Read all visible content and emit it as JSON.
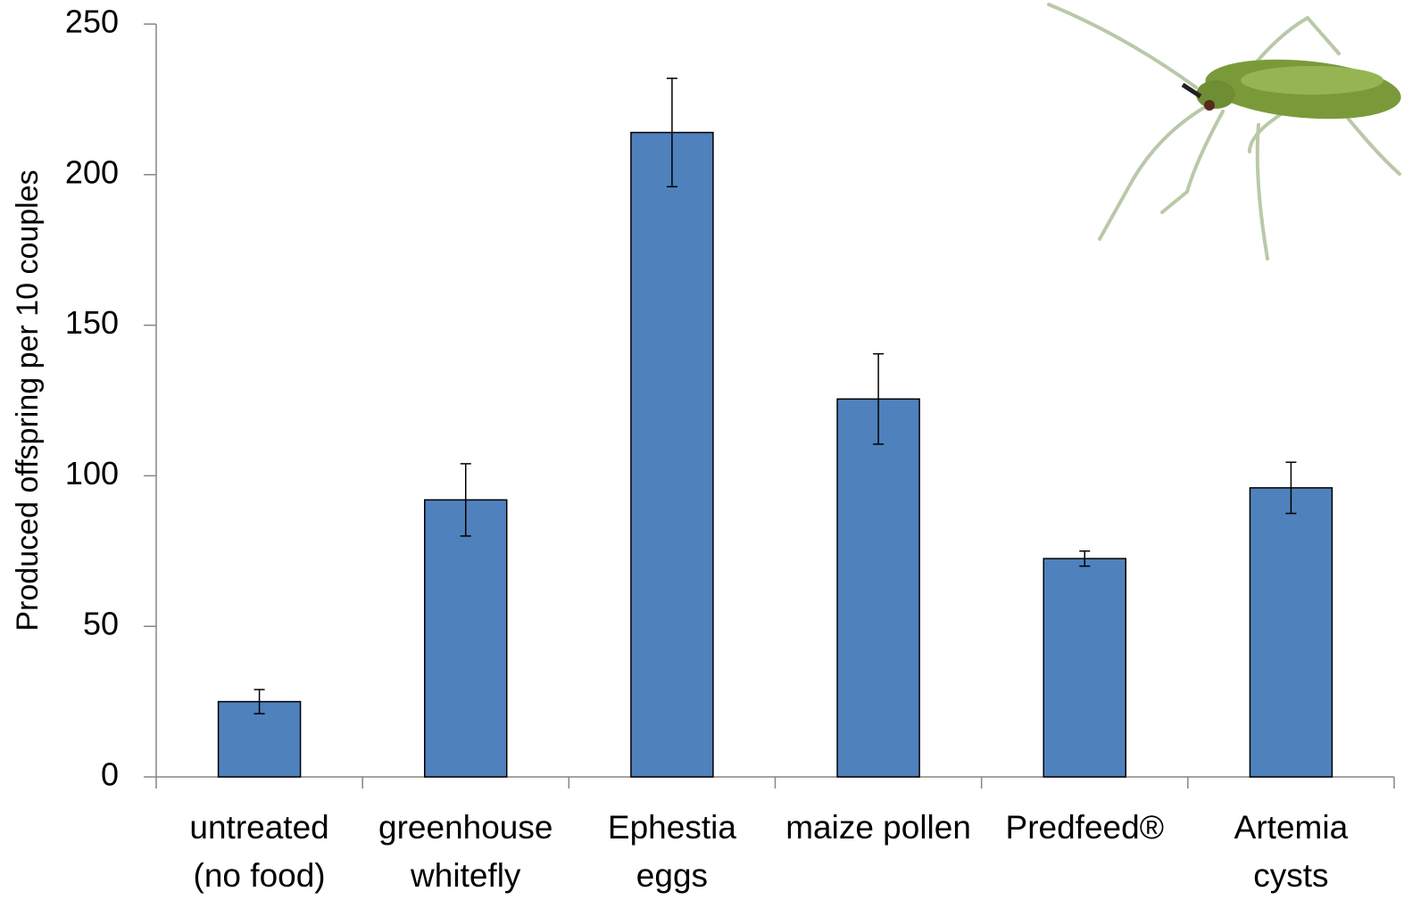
{
  "chart_data": {
    "type": "bar",
    "y_label": "Produced offspring per 10 couples",
    "categories": [
      [
        "untreated",
        "(no food)"
      ],
      [
        "greenhouse",
        "whitefly"
      ],
      [
        "Ephestia",
        "eggs"
      ],
      [
        "maize pollen"
      ],
      [
        "Predfeed®"
      ],
      [
        "Artemia",
        "cysts"
      ]
    ],
    "values": [
      25,
      92,
      214,
      125.5,
      72.5,
      96
    ],
    "errors": [
      4,
      12,
      18,
      15,
      2.5,
      8.5
    ],
    "color": "#4f81bd",
    "ylim": [
      0,
      250
    ],
    "yticks": [
      0,
      50,
      100,
      150,
      200,
      250
    ],
    "grid": false
  }
}
